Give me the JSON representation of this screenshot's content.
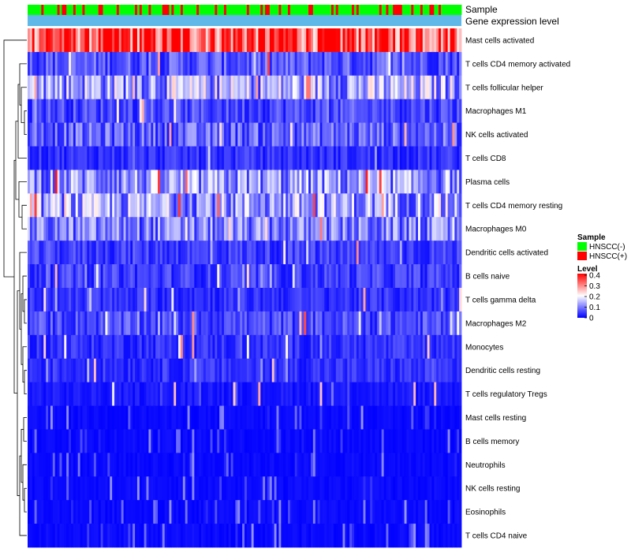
{
  "chart_data": {
    "type": "heatmap",
    "title": "",
    "annotation_tracks": [
      "Sample",
      "Gene expression level"
    ],
    "rows": [
      "Mast cells activated",
      "T cells CD4 memory activated",
      "T cells follicular helper",
      "Macrophages M1",
      "NK cells activated",
      "T cells CD8",
      "Plasma cells",
      "T cells CD4 memory resting",
      "Macrophages M0",
      "Dendritic cells activated",
      "B cells naive",
      "T cells gamma delta",
      "Macrophages M2",
      "Monocytes",
      "Dendritic cells resting",
      "T cells regulatory  Tregs",
      "Mast cells resting",
      "B cells memory",
      "Neutrophils",
      "NK cells resting",
      "Eosinophils",
      "T cells CD4 naive"
    ],
    "row_mean_level": [
      0.34,
      0.07,
      0.14,
      0.06,
      0.08,
      0.04,
      0.12,
      0.13,
      0.1,
      0.05,
      0.05,
      0.04,
      0.06,
      0.04,
      0.04,
      0.02,
      0.01,
      0.01,
      0.01,
      0.01,
      0.005,
      0.01
    ],
    "n_samples": 190,
    "color_scale": {
      "min": 0,
      "max": 0.4,
      "low": "#0000ff",
      "mid": "#ffffff",
      "high": "#ff0000"
    },
    "legend_sample": {
      "title": "Sample",
      "items": [
        {
          "label": "HNSCC(-)",
          "color": "#00ff00"
        },
        {
          "label": "HNSCC(+)",
          "color": "#ff0000"
        }
      ]
    },
    "legend_level": {
      "title": "Level",
      "ticks": [
        "0.4",
        "0.3",
        "0.2",
        "0.1",
        "0"
      ],
      "tick_values": [
        0.4,
        0.3,
        0.2,
        0.1,
        0
      ]
    },
    "gene_expression_color": "#5fb8e8"
  }
}
